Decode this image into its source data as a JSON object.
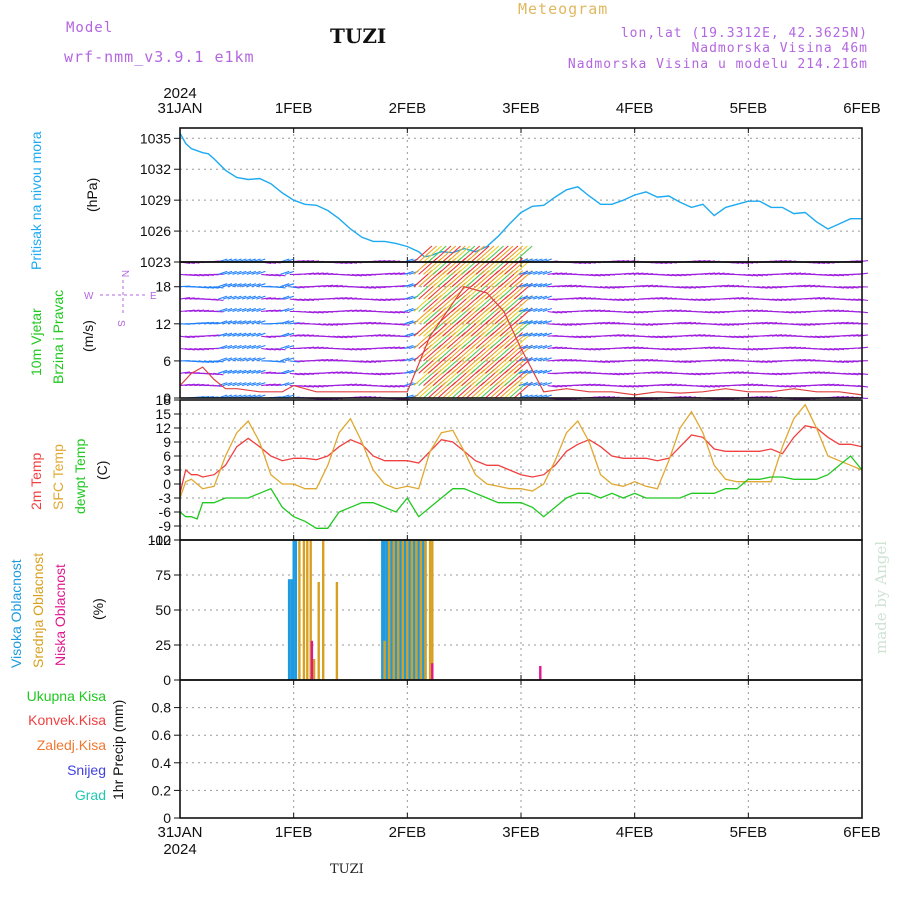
{
  "header": {
    "model_label": "Model",
    "model_name": "wrf-nmm_v3.9.1 e1km",
    "station": "TUZI",
    "product": "Meteogram",
    "lonlat": "lon,lat (19.3312E, 42.3625N)",
    "elevation": "Nadmorska Visina 46m",
    "model_elevation": "Nadmorska Visina u modelu 214.216m"
  },
  "footer": {
    "station": "TUZI",
    "credit": "made by Angel"
  },
  "time_axis": {
    "year": "2024",
    "ticks": [
      "31JAN",
      "1FEB",
      "2FEB",
      "3FEB",
      "4FEB",
      "5FEB",
      "6FEB"
    ]
  },
  "colors": {
    "pressure": "#1eaaf0",
    "temp2m": "#f04040",
    "sfc": "#e0a830",
    "dewpt": "#20c820",
    "high_cloud": "#1e9be0",
    "mid_cloud": "#d8a020",
    "low_cloud": "#e01890",
    "wind_violet": "#a020e0",
    "wind_blue": "#2080ff",
    "wind_orange": "#f0a020",
    "wind_red": "#f03030"
  },
  "chart_data": [
    {
      "type": "line",
      "name": "pressure",
      "ylabel_lines": [
        "Pritisak na nivou mora",
        "(hPa)"
      ],
      "ylim": [
        1023,
        1036
      ],
      "yticks": [
        "1023",
        "1026",
        "1029",
        "1032",
        "1035"
      ],
      "xlim_days": [
        0,
        6
      ],
      "x": [
        0,
        0.05,
        0.1,
        0.15,
        0.2,
        0.25,
        0.3,
        0.4,
        0.5,
        0.6,
        0.7,
        0.8,
        0.9,
        1.0,
        1.1,
        1.2,
        1.3,
        1.4,
        1.5,
        1.6,
        1.7,
        1.8,
        1.9,
        2.0,
        2.1,
        2.15,
        2.2,
        2.3,
        2.4,
        2.5,
        2.6,
        2.7,
        2.8,
        2.9,
        3.0,
        3.1,
        3.2,
        3.3,
        3.4,
        3.5,
        3.6,
        3.7,
        3.8,
        3.9,
        4.0,
        4.1,
        4.2,
        4.3,
        4.4,
        4.5,
        4.6,
        4.7,
        4.8,
        4.9,
        5.0,
        5.1,
        5.2,
        5.3,
        5.4,
        5.5,
        5.6,
        5.7,
        5.8,
        5.9,
        6.0
      ],
      "values": [
        1035.5,
        1034.5,
        1034.0,
        1033.8,
        1033.6,
        1033.5,
        1033.0,
        1031.9,
        1031.2,
        1031.0,
        1031.1,
        1030.6,
        1029.7,
        1029.0,
        1028.6,
        1028.5,
        1028.0,
        1027.2,
        1026.2,
        1025.4,
        1025.0,
        1025.0,
        1024.8,
        1024.5,
        1024.0,
        1023.5,
        1023.6,
        1024.0,
        1023.9,
        1024.3,
        1024.0,
        1024.5,
        1025.5,
        1026.7,
        1027.8,
        1028.4,
        1028.5,
        1029.3,
        1030.0,
        1030.3,
        1029.4,
        1028.6,
        1028.6,
        1029.0,
        1029.5,
        1029.8,
        1029.3,
        1029.4,
        1028.8,
        1028.3,
        1028.6,
        1027.5,
        1028.3,
        1028.6,
        1028.9,
        1028.9,
        1028.3,
        1028.3,
        1027.7,
        1027.8,
        1026.9,
        1026.2,
        1026.7,
        1027.2,
        1027.2
      ]
    },
    {
      "type": "line",
      "name": "wind",
      "ylabel_lines": [
        "10m Vjetar",
        "Brzina i Pravac",
        "(m/s)"
      ],
      "compass": [
        "N",
        "W",
        "E",
        "S"
      ],
      "ylim": [
        0,
        22
      ],
      "yticks": [
        "0",
        "6",
        "12",
        "18"
      ],
      "x": [
        0,
        0.1,
        0.2,
        0.3,
        0.4,
        0.5,
        0.7,
        0.9,
        1.0,
        1.2,
        1.5,
        1.8,
        2.0,
        2.2,
        2.5,
        2.7,
        2.85,
        3.0,
        3.2,
        3.4,
        3.6,
        3.8,
        4.0,
        4.2,
        4.4,
        4.6,
        4.8,
        5.0,
        5.2,
        5.4,
        5.6,
        5.8,
        6.0
      ],
      "values": [
        2,
        4,
        5,
        3,
        1.5,
        1.5,
        1,
        1,
        2,
        1,
        1,
        1,
        1,
        10,
        18,
        17,
        14,
        8,
        1,
        1.5,
        1,
        1,
        0.5,
        1,
        0.8,
        1,
        1.5,
        1,
        1,
        1.5,
        1,
        1,
        0.5
      ]
    },
    {
      "type": "line",
      "name": "temperature",
      "ylabel_lines": [
        "2m Temp",
        "SFC Temp",
        "dewpt Temp",
        "(C)"
      ],
      "ylim": [
        -12,
        18
      ],
      "yticks": [
        "-12",
        "-9",
        "-6",
        "-3",
        "0",
        "3",
        "6",
        "9",
        "12",
        "15",
        "18"
      ],
      "x": [
        0,
        0.05,
        0.1,
        0.15,
        0.2,
        0.3,
        0.4,
        0.5,
        0.6,
        0.7,
        0.8,
        0.9,
        1.0,
        1.1,
        1.2,
        1.3,
        1.4,
        1.5,
        1.6,
        1.7,
        1.8,
        1.9,
        2.0,
        2.1,
        2.2,
        2.3,
        2.4,
        2.5,
        2.6,
        2.7,
        2.8,
        2.9,
        3.0,
        3.1,
        3.2,
        3.3,
        3.4,
        3.5,
        3.6,
        3.7,
        3.8,
        3.9,
        4.0,
        4.1,
        4.2,
        4.3,
        4.4,
        4.5,
        4.6,
        4.7,
        4.8,
        4.9,
        5.0,
        5.1,
        5.2,
        5.3,
        5.4,
        5.5,
        5.6,
        5.7,
        5.8,
        5.9,
        6.0
      ],
      "series": [
        {
          "name": "2m Temp",
          "values": [
            -2,
            3,
            2,
            2,
            1.5,
            2,
            4,
            8,
            9.8,
            8,
            6,
            5,
            5.5,
            5.5,
            5.2,
            6,
            8,
            9.5,
            8.5,
            6,
            5,
            5,
            5,
            4.5,
            7,
            9.5,
            9,
            7,
            5,
            4,
            4,
            3,
            2,
            1.5,
            2,
            4,
            7,
            8.5,
            9.5,
            8,
            6,
            5.5,
            5.5,
            5.5,
            5,
            5.5,
            8,
            10.5,
            10,
            7.5,
            7,
            7,
            7,
            7,
            7.5,
            6.5,
            10,
            12.5,
            12,
            10,
            8.5,
            8.5,
            8
          ]
        },
        {
          "name": "SFC Temp",
          "values": [
            -3,
            0.5,
            1,
            0,
            -1,
            -0.5,
            6,
            11,
            13.5,
            9,
            2,
            0,
            0,
            -1,
            -1,
            4,
            11,
            14,
            9,
            3,
            0,
            -1,
            -0.5,
            -1,
            7,
            11,
            11.5,
            7,
            2,
            0,
            -0.5,
            -1,
            -1,
            -1.5,
            0,
            5,
            11,
            13.5,
            9,
            2,
            0,
            -0.5,
            0.5,
            -0.5,
            -1,
            5,
            12,
            15.5,
            11,
            4,
            1,
            0.5,
            0.5,
            0.5,
            0.5,
            8,
            14,
            17,
            12,
            6,
            5,
            4,
            3
          ]
        },
        {
          "name": "dewpt Temp",
          "values": [
            -6,
            -7,
            -7,
            -7.5,
            -4,
            -4,
            -3,
            -3,
            -3,
            -2,
            -1,
            -5,
            -7,
            -8,
            -9.5,
            -9.5,
            -6,
            -5,
            -4,
            -4,
            -5,
            -6,
            -3,
            -7,
            -5,
            -3,
            -1,
            -1,
            -2,
            -3,
            -4,
            -4,
            -4,
            -5,
            -7,
            -5,
            -3,
            -2,
            -2,
            -3,
            -2,
            -3,
            -2,
            -3,
            -3,
            -3,
            -3,
            -2,
            -2,
            -2,
            -1,
            -1,
            1,
            1,
            1.5,
            1.5,
            1,
            1,
            1,
            2,
            4,
            6,
            3
          ]
        }
      ]
    },
    {
      "type": "bar",
      "name": "cloud_cover",
      "ylabel_lines": [
        "Visoka Oblacnost",
        "Srednja Oblacnost",
        "Niska Oblacnost",
        "(%)"
      ],
      "ylim": [
        0,
        100
      ],
      "yticks": [
        "0",
        "25",
        "50",
        "75",
        "100"
      ],
      "series": [
        {
          "name": "Visoka Oblacnost",
          "x": [
            0.96,
            0.98,
            1.0,
            1.02,
            1.78,
            1.8,
            1.82,
            1.84,
            1.86,
            1.88,
            1.9,
            1.92,
            1.94,
            1.96,
            1.98,
            2.0,
            2.02,
            2.04,
            2.06,
            2.08,
            2.1,
            2.12,
            2.14,
            2.16
          ],
          "values": [
            72,
            72,
            100,
            100,
            100,
            100,
            100,
            100,
            100,
            100,
            100,
            100,
            100,
            100,
            100,
            100,
            100,
            100,
            100,
            100,
            100,
            100,
            100,
            100
          ]
        },
        {
          "name": "Srednja Oblacnost",
          "x": [
            1.05,
            1.09,
            1.12,
            1.15,
            1.18,
            1.22,
            1.26,
            1.38,
            1.8,
            1.84,
            1.88,
            1.92,
            1.96,
            2.0,
            2.04,
            2.08,
            2.12,
            2.16,
            2.2,
            2.22
          ],
          "values": [
            100,
            100,
            100,
            100,
            15,
            70,
            100,
            70,
            28,
            100,
            100,
            100,
            100,
            100,
            100,
            100,
            100,
            100,
            100,
            100
          ]
        },
        {
          "name": "Niska Oblacnost",
          "x": [
            1.16,
            2.22,
            3.17
          ],
          "values": [
            28,
            12,
            10
          ]
        }
      ]
    },
    {
      "type": "line",
      "name": "precipitation",
      "ylabel_lines": [
        "1hr Precip (mm)"
      ],
      "legend": [
        "Ukupna Kisa",
        "Konvek.Kisa",
        "Zaledj.Kisa",
        "Snijeg",
        "Grad"
      ],
      "ylim": [
        0,
        1.0
      ],
      "yticks": [
        "0",
        "0.2",
        "0.4",
        "0.6",
        "0.8"
      ],
      "x": [
        0,
        6
      ],
      "values": [
        0,
        0
      ]
    }
  ]
}
